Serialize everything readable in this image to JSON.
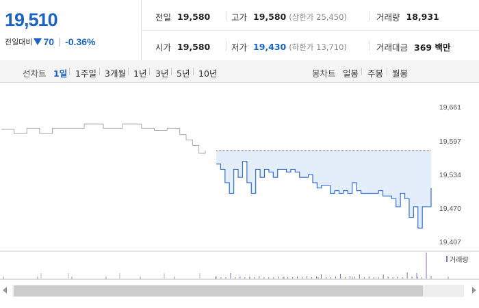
{
  "summary": {
    "price": "19,510",
    "change_label": "전일대비",
    "change_value": "70",
    "change_direction_icon": "down-triangle-icon",
    "change_separator": "|",
    "change_percent": "-0.36%"
  },
  "stats": {
    "prev_close": {
      "label": "전일",
      "value": "19,580"
    },
    "high": {
      "label": "고가",
      "value": "19,580",
      "sub": "(상한가 25,450)"
    },
    "volume": {
      "label": "거래량",
      "value": "18,931"
    },
    "open": {
      "label": "시가",
      "value": "19,580"
    },
    "low": {
      "label": "저가",
      "value": "19,430",
      "sub": "(하한가 13,710)"
    },
    "trade_value": {
      "label": "거래대금",
      "value": "369 백만"
    }
  },
  "periods": {
    "line_label": "선차트",
    "line_items": [
      "1일",
      "1주일",
      "3개월",
      "1년",
      "3년",
      "5년",
      "10년"
    ],
    "active": "1일",
    "candle_label": "봉차트",
    "candle_items": [
      "일봉",
      "주봉",
      "월봉"
    ]
  },
  "chart_data": {
    "type": "line",
    "y_ticks": [
      "19,661",
      "19,597",
      "19,534",
      "19,470",
      "19,407"
    ],
    "reference_price": 19580,
    "legend": "거래량",
    "colors": {
      "prev_line": "#aaaaaa",
      "today_line": "#2f6fd6",
      "fill": "#e4eefa",
      "volume": "#8a6bb8"
    },
    "prev_series": [
      19620,
      19620,
      19612,
      19612,
      19622,
      19622,
      19612,
      19612,
      19622,
      19622,
      19622,
      19622,
      19622,
      19630,
      19630,
      19630,
      19622,
      19622,
      19622,
      19630,
      19630,
      19630,
      19622,
      19622,
      19618,
      19618,
      19622,
      19622,
      19610,
      19600,
      19590,
      19575,
      19580
    ],
    "series": [
      19555,
      19545,
      19520,
      19500,
      19545,
      19530,
      19560,
      19520,
      19500,
      19545,
      19530,
      19545,
      19540,
      19530,
      19545,
      19545,
      19540,
      19545,
      19540,
      19530,
      19530,
      19535,
      19520,
      19510,
      19515,
      19515,
      19500,
      19505,
      19500,
      19505,
      19500,
      19520,
      19505,
      19500,
      19500,
      19500,
      19500,
      19505,
      19495,
      19495,
      19490,
      19475,
      19500,
      19490,
      19455,
      19475,
      19435,
      19475,
      19475,
      19510
    ]
  }
}
